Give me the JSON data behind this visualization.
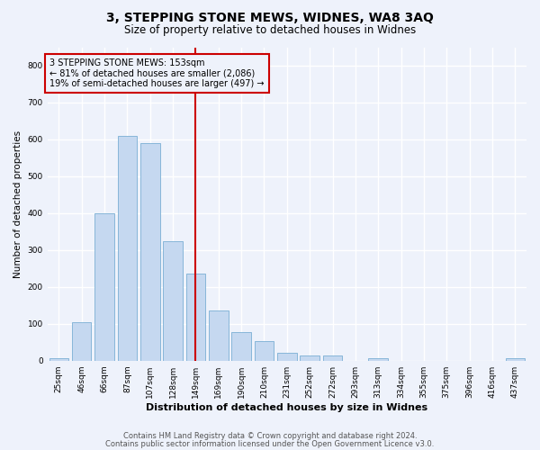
{
  "title": "3, STEPPING STONE MEWS, WIDNES, WA8 3AQ",
  "subtitle": "Size of property relative to detached houses in Widnes",
  "xlabel": "Distribution of detached houses by size in Widnes",
  "ylabel": "Number of detached properties",
  "bar_labels": [
    "25sqm",
    "46sqm",
    "66sqm",
    "87sqm",
    "107sqm",
    "128sqm",
    "149sqm",
    "169sqm",
    "190sqm",
    "210sqm",
    "231sqm",
    "252sqm",
    "272sqm",
    "293sqm",
    "313sqm",
    "334sqm",
    "355sqm",
    "375sqm",
    "396sqm",
    "416sqm",
    "437sqm"
  ],
  "bar_values": [
    7,
    105,
    400,
    610,
    590,
    325,
    237,
    135,
    77,
    52,
    22,
    15,
    14,
    0,
    6,
    0,
    0,
    0,
    0,
    0,
    7
  ],
  "bar_color": "#c5d8f0",
  "bar_edge_color": "#7aafd4",
  "vline_x_idx": 6,
  "vline_color": "#cc0000",
  "annotation_text": "3 STEPPING STONE MEWS: 153sqm\n← 81% of detached houses are smaller (2,086)\n19% of semi-detached houses are larger (497) →",
  "annotation_box_color": "#cc0000",
  "ylim": [
    0,
    850
  ],
  "yticks": [
    0,
    100,
    200,
    300,
    400,
    500,
    600,
    700,
    800
  ],
  "footer1": "Contains HM Land Registry data © Crown copyright and database right 2024.",
  "footer2": "Contains public sector information licensed under the Open Government Licence v3.0.",
  "bg_color": "#eef2fb",
  "grid_color": "#ffffff",
  "title_fontsize": 10,
  "subtitle_fontsize": 8.5,
  "xlabel_fontsize": 8,
  "ylabel_fontsize": 7.5,
  "tick_fontsize": 6.5,
  "annotation_fontsize": 7,
  "footer_fontsize": 6
}
